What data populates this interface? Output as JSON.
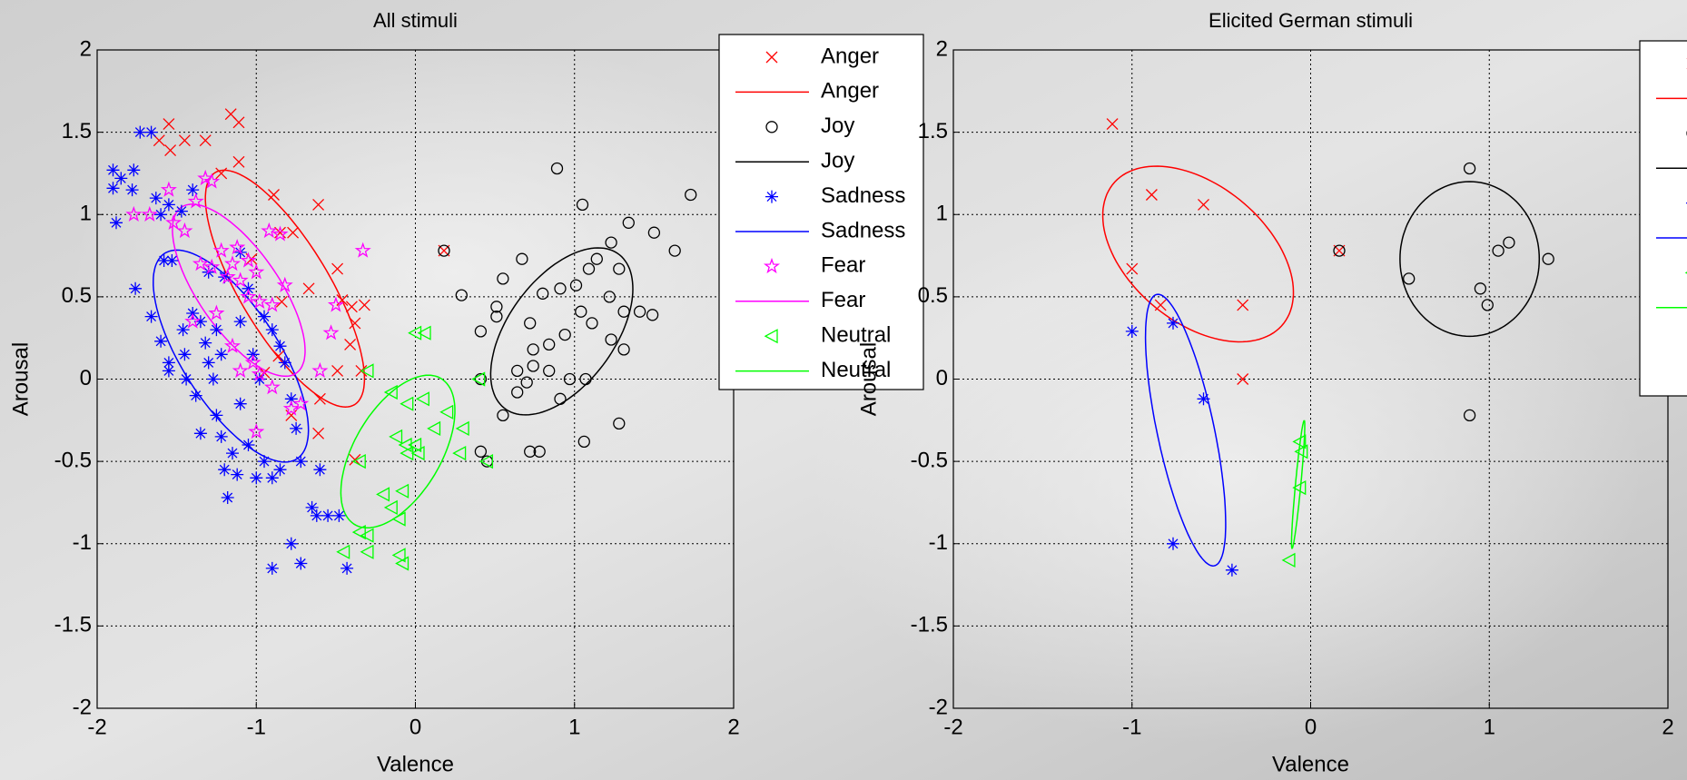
{
  "chart_data": [
    {
      "type": "scatter",
      "title": "All stimuli",
      "xlabel": "Valence",
      "ylabel": "Arousal",
      "xlim": [
        -2,
        2
      ],
      "ylim": [
        -2,
        2
      ],
      "xticks": [
        -2,
        -1,
        0,
        1,
        2
      ],
      "yticks": [
        -2,
        -1.5,
        -1,
        -0.5,
        0,
        0.5,
        1,
        1.5,
        2
      ],
      "grid": true,
      "legend": "outside-top-right",
      "series": [
        {
          "name": "Anger",
          "color": "#ff0000",
          "marker": "x",
          "x": [
            -1.55,
            -1.61,
            -1.54,
            -1.45,
            -1.32,
            -1.16,
            -1.11,
            -1.22,
            -1.11,
            -0.89,
            -0.85,
            -0.77,
            -0.61,
            -0.67,
            -0.49,
            -0.46,
            -0.4,
            -0.32,
            -0.38,
            -0.41,
            -0.49,
            -0.34,
            -0.6,
            -0.61,
            -0.78,
            -0.95,
            -0.86,
            -0.84,
            -0.38,
            0.18,
            -1.03
          ],
          "y": [
            1.55,
            1.45,
            1.39,
            1.45,
            1.45,
            1.61,
            1.56,
            1.25,
            1.32,
            1.12,
            0.89,
            0.89,
            1.06,
            0.55,
            0.67,
            0.48,
            0.44,
            0.45,
            0.34,
            0.21,
            0.05,
            0.05,
            -0.12,
            -0.33,
            -0.22,
            0.04,
            0.14,
            0.47,
            -0.49,
            0.78,
            0.73
          ]
        },
        {
          "name": "Joy",
          "color": "#000000",
          "marker": "o",
          "x": [
            0.18,
            0.89,
            1.05,
            1.73,
            1.5,
            1.34,
            1.63,
            0.29,
            0.55,
            0.67,
            0.51,
            0.51,
            0.41,
            0.72,
            0.74,
            0.41,
            0.41,
            0.45,
            0.72,
            0.78,
            0.55,
            1.06,
            1.28,
            0.8,
            0.91,
            1.01,
            1.09,
            1.14,
            1.23,
            1.28,
            1.22,
            1.31,
            1.31,
            1.23,
            1.11,
            1.04,
            0.94,
            0.84,
            0.74,
            0.64,
            0.7,
            0.84,
            0.97,
            1.07,
            0.91,
            0.64,
            1.41,
            1.49
          ],
          "y": [
            0.78,
            1.28,
            1.06,
            1.12,
            0.89,
            0.95,
            0.78,
            0.51,
            0.61,
            0.73,
            0.44,
            0.38,
            0.29,
            0.34,
            0.18,
            0,
            -0.44,
            -0.5,
            -0.44,
            -0.44,
            -0.22,
            -0.38,
            -0.27,
            0.52,
            0.55,
            0.57,
            0.67,
            0.73,
            0.83,
            0.67,
            0.5,
            0.41,
            0.18,
            0.24,
            0.34,
            0.41,
            0.27,
            0.21,
            0.08,
            0.05,
            -0.02,
            0.05,
            0,
            0,
            -0.12,
            -0.08,
            0.41,
            0.39
          ]
        },
        {
          "name": "Sadness",
          "color": "#0000ff",
          "marker": "*",
          "x": [
            -1.9,
            -1.85,
            -1.77,
            -1.73,
            -1.66,
            -1.9,
            -1.78,
            -1.88,
            -1.63,
            -1.6,
            -1.55,
            -1.47,
            -1.4,
            -1.76,
            -1.66,
            -1.58,
            -1.53,
            -1.6,
            -1.55,
            -1.55,
            -1.46,
            -1.45,
            -1.44,
            -1.4,
            -1.35,
            -1.32,
            -1.3,
            -1.27,
            -1.25,
            -1.22,
            -1.38,
            -1.35,
            -1.25,
            -1.22,
            -1.2,
            -1.15,
            -1.18,
            -1.12,
            -1.05,
            -1.0,
            -0.95,
            -0.9,
            -0.85,
            -0.95,
            -0.9,
            -0.85,
            -0.82,
            -0.98,
            -1.02,
            -1.1,
            -0.78,
            -0.75,
            -0.72,
            -0.6,
            -0.65,
            -0.62,
            -0.55,
            -0.48,
            -0.78,
            -0.72,
            -0.9,
            -0.43,
            -1.3,
            -1.2,
            -1.1,
            -1.05,
            -1.1
          ],
          "y": [
            1.27,
            1.22,
            1.27,
            1.5,
            1.5,
            1.16,
            1.15,
            0.95,
            1.1,
            1.0,
            1.06,
            1.02,
            1.15,
            0.55,
            0.38,
            0.72,
            0.72,
            0.23,
            0.1,
            0.05,
            0.3,
            0.15,
            0.0,
            0.4,
            0.35,
            0.22,
            0.1,
            0.0,
            0.3,
            0.15,
            -0.1,
            -0.33,
            -0.22,
            -0.35,
            -0.55,
            -0.45,
            -0.72,
            -0.58,
            -0.4,
            -0.6,
            -0.5,
            -0.6,
            -0.55,
            0.38,
            0.3,
            0.2,
            0.1,
            0.0,
            0.15,
            -0.15,
            -0.12,
            -0.3,
            -0.5,
            -0.55,
            -0.78,
            -0.83,
            -0.83,
            -0.83,
            -1.0,
            -1.12,
            -1.15,
            -1.15,
            0.65,
            0.62,
            0.77,
            0.55,
            0.35
          ]
        },
        {
          "name": "Fear",
          "color": "#ff00ff",
          "marker": "pentagram",
          "x": [
            -1.77,
            -1.67,
            -1.55,
            -1.52,
            -1.45,
            -1.38,
            -1.32,
            -1.28,
            -1.35,
            -1.28,
            -1.22,
            -1.18,
            -1.15,
            -1.12,
            -1.1,
            -1.05,
            -1.0,
            -0.92,
            -0.85,
            -0.82,
            -0.9,
            -0.98,
            -1.05,
            -1.4,
            -1.25,
            -1.15,
            -1.1,
            -1.02,
            -0.98,
            -0.9,
            -0.78,
            -0.72,
            -0.6,
            -0.53,
            -0.5,
            -0.33,
            -1.0
          ],
          "y": [
            1.0,
            1.0,
            1.15,
            0.95,
            0.9,
            1.08,
            1.22,
            1.2,
            0.7,
            0.68,
            0.78,
            0.62,
            0.7,
            0.8,
            0.6,
            0.72,
            0.65,
            0.9,
            0.88,
            0.57,
            0.45,
            0.47,
            0.5,
            0.35,
            0.4,
            0.2,
            0.05,
            0.1,
            0.03,
            -0.05,
            -0.18,
            -0.15,
            0.05,
            0.28,
            0.45,
            0.78,
            -0.32
          ]
        },
        {
          "name": "Neutral",
          "color": "#00ff00",
          "marker": "<",
          "x": [
            0.0,
            0.06,
            -0.3,
            -0.15,
            -0.05,
            0.05,
            0.12,
            0.2,
            0.3,
            0.28,
            0.4,
            0.45,
            -0.12,
            -0.06,
            -0.05,
            0.02,
            -0.2,
            -0.15,
            -0.08,
            -0.1,
            -0.35,
            -0.3,
            -0.3,
            -0.45,
            -0.1,
            -0.08,
            -0.35,
            0.0
          ],
          "y": [
            0.28,
            0.28,
            0.05,
            -0.08,
            -0.15,
            -0.12,
            -0.3,
            -0.2,
            -0.3,
            -0.45,
            0.0,
            -0.5,
            -0.35,
            -0.4,
            -0.45,
            -0.45,
            -0.7,
            -0.78,
            -0.68,
            -0.85,
            -0.93,
            -0.95,
            -1.05,
            -1.05,
            -1.07,
            -1.12,
            -0.5,
            -0.4
          ]
        }
      ],
      "ellipses": [
        {
          "name": "Anger",
          "color": "#ff0000",
          "center": [
            -0.82,
            0.55
          ],
          "axes": [
            0.83,
            0.28
          ],
          "angle": -58
        },
        {
          "name": "Joy",
          "color": "#000000",
          "center": [
            0.92,
            0.29
          ],
          "axes": [
            0.59,
            0.33
          ],
          "angle": 52
        },
        {
          "name": "Sadness",
          "color": "#0000ff",
          "center": [
            -1.16,
            0.14
          ],
          "axes": [
            0.75,
            0.3
          ],
          "angle": -56
        },
        {
          "name": "Fear",
          "color": "#ff00ff",
          "center": [
            -1.11,
            0.54
          ],
          "axes": [
            0.62,
            0.25
          ],
          "angle": -54
        },
        {
          "name": "Neutral",
          "color": "#00ff00",
          "center": [
            -0.11,
            -0.44
          ],
          "axes": [
            0.52,
            0.27
          ],
          "angle": 58
        }
      ]
    },
    {
      "type": "scatter",
      "title": "Elicited German stimuli",
      "xlabel": "Valence",
      "ylabel": "Arousal",
      "xlim": [
        -2,
        2
      ],
      "ylim": [
        -2,
        2
      ],
      "xticks": [
        -2,
        -1,
        0,
        1,
        2
      ],
      "yticks": [
        -2,
        -1.5,
        -1,
        -0.5,
        0,
        0.5,
        1,
        1.5,
        2
      ],
      "grid": true,
      "legend": "outside-top-right",
      "series": [
        {
          "color": "#ff0000",
          "marker": "x",
          "x": [
            -1.11,
            -0.89,
            -0.6,
            -1.0,
            -0.84,
            -0.38,
            -0.38,
            0.16
          ],
          "y": [
            1.55,
            1.12,
            1.06,
            0.67,
            0.45,
            0.45,
            0,
            0.78
          ]
        },
        {
          "color": "#000000",
          "marker": "o",
          "x": [
            0.16,
            0.89,
            0.55,
            0.95,
            1.05,
            1.11,
            1.33,
            0.99,
            0.89
          ],
          "y": [
            0.78,
            1.28,
            0.61,
            0.55,
            0.78,
            0.83,
            0.73,
            0.45,
            -0.22
          ]
        },
        {
          "color": "#0000ff",
          "marker": "*",
          "x": [
            -1.0,
            -0.77,
            -0.6,
            -0.77,
            -0.44
          ],
          "y": [
            0.29,
            0.34,
            -0.12,
            -1.0,
            -1.16
          ]
        },
        {
          "color": "#00ff00",
          "marker": "<",
          "x": [
            -0.06,
            -0.05,
            -0.06,
            -0.12
          ],
          "y": [
            -0.38,
            -0.44,
            -0.66,
            -1.1
          ]
        }
      ],
      "ellipses": [
        {
          "color": "#ff0000",
          "center": [
            -0.63,
            0.76
          ],
          "axes": [
            0.64,
            0.4
          ],
          "angle": -45
        },
        {
          "color": "#000000",
          "center": [
            0.89,
            0.73
          ],
          "axes": [
            0.47,
            0.39
          ],
          "angle": 90
        },
        {
          "color": "#0000ff",
          "center": [
            -0.7,
            -0.31
          ],
          "axes": [
            0.84,
            0.16
          ],
          "angle": -79
        },
        {
          "color": "#00ff00",
          "center": [
            -0.07,
            -0.64
          ],
          "axes": [
            0.39,
            0.015
          ],
          "angle": 85
        }
      ]
    }
  ]
}
